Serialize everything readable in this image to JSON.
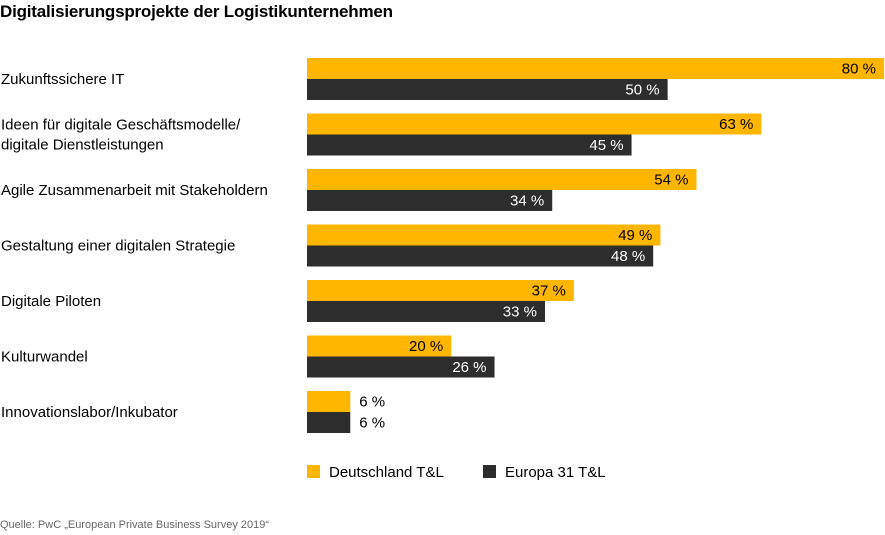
{
  "chart_data": {
    "type": "bar",
    "orientation": "horizontal",
    "title": "Digitalisierungsprojekte der Logistikunternehmen",
    "source": "Quelle: PwC „European Private Business Survey 2019“",
    "categories": [
      [
        "Zukunftssichere IT"
      ],
      [
        "Ideen für digitale Geschäftsmodelle/",
        "digitale Dienstleistungen"
      ],
      [
        "Agile Zusammenarbeit mit Stakeholdern"
      ],
      [
        "Gestaltung einer digitalen Strategie"
      ],
      [
        "Digitale Piloten"
      ],
      [
        "Kulturwandel"
      ],
      [
        "Innovationslabor/Inkubator"
      ]
    ],
    "series": [
      {
        "name": "Deutschland T&L",
        "color": "#FFB600",
        "values": [
          80,
          63,
          54,
          49,
          37,
          20,
          6
        ],
        "labels": [
          "80 %",
          "63 %",
          "54 %",
          "49 %",
          "37 %",
          "20 %",
          "6 %"
        ]
      },
      {
        "name": "Europa 31 T&L",
        "color": "#2D2D2D",
        "values": [
          50,
          45,
          34,
          48,
          33,
          26,
          6
        ],
        "labels": [
          "50 %",
          "45 %",
          "34 %",
          "48 %",
          "33 %",
          "26 %",
          "6 %"
        ]
      }
    ],
    "unit": "%",
    "xlim": [
      0,
      80
    ],
    "grid": false,
    "legend_position": "bottom"
  }
}
